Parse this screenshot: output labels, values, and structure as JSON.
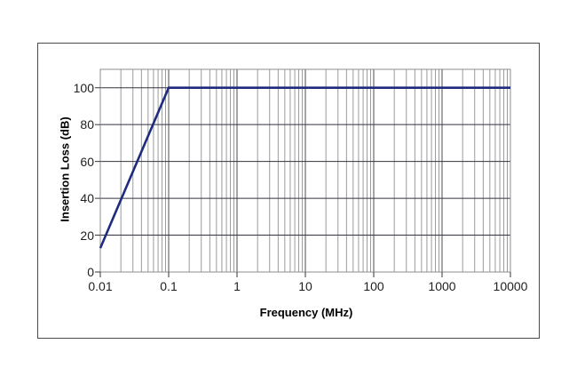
{
  "page": {
    "background": "#ffffff",
    "frame_border_color": "#4a4a4a"
  },
  "chart_data": {
    "type": "line",
    "title": "",
    "xlabel": "Frequency (MHz)",
    "ylabel": "Insertion Loss (dB)",
    "x_scale": "log",
    "xlim": [
      0.01,
      10000
    ],
    "ylim": [
      0,
      110
    ],
    "x_ticks": [
      "0.01",
      "0.1",
      "1",
      "10",
      "100",
      "1000",
      "10000"
    ],
    "x_tick_values": [
      0.01,
      0.1,
      1,
      10,
      100,
      1000,
      10000
    ],
    "y_ticks": [
      "100",
      "80",
      "60",
      "40",
      "20",
      "0"
    ],
    "y_tick_values": [
      100,
      80,
      60,
      40,
      20,
      0
    ],
    "grid": {
      "horizontal_major": true,
      "vertical_major": true,
      "vertical_minor_log": true,
      "minor_color": "#9b9b9b",
      "major_vertical_color": "#4d4d4d",
      "major_horizontal_color": "#33333d",
      "plot_border_color": "#8c8c8c",
      "tick_color": "#333333"
    },
    "legend": null,
    "series": [
      {
        "name": "Insertion Loss",
        "color": "#1f2b7d",
        "width": 2.6,
        "points": [
          [
            0.01,
            13
          ],
          [
            0.1,
            100
          ],
          [
            10000,
            100
          ]
        ]
      }
    ]
  }
}
